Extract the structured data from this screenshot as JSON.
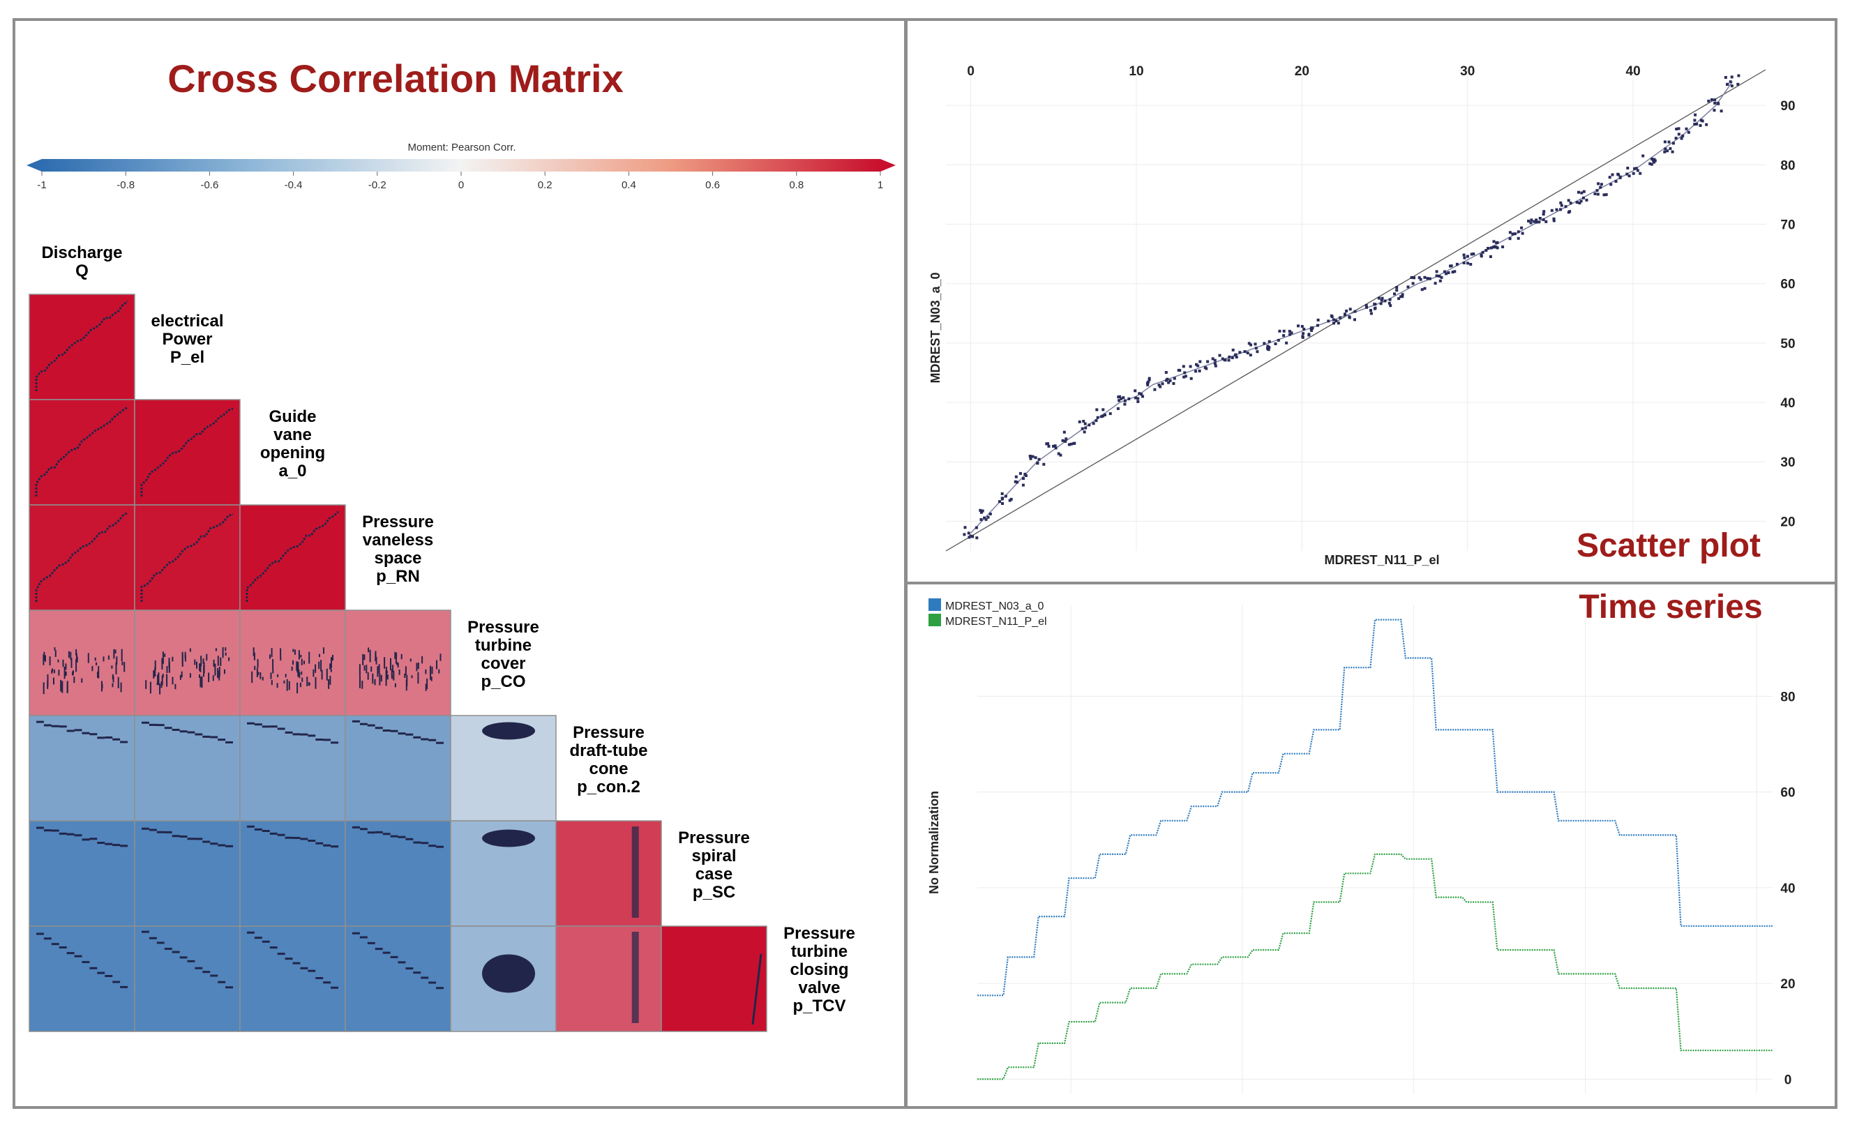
{
  "matrix": {
    "title": "Cross Correlation Matrix",
    "colorbar": {
      "label": "Moment: Pearson Corr.",
      "ticks": [
        "-1",
        "-0.8",
        "-0.6",
        "-0.4",
        "-0.2",
        "0",
        "0.2",
        "0.4",
        "0.6",
        "0.8",
        "1"
      ],
      "colors": {
        "neg": "#2e6db0",
        "mid": "#f3f3f3",
        "pos": "#c8102e"
      }
    },
    "variables": [
      [
        "Discharge",
        "Q"
      ],
      [
        "electrical",
        "Power",
        "P_el"
      ],
      [
        "Guide",
        "vane",
        "opening",
        "a_0"
      ],
      [
        "Pressure",
        "vaneless",
        "space",
        "p_RN"
      ],
      [
        "Pressure",
        "turbine",
        "cover",
        "p_CO"
      ],
      [
        "Pressure",
        "draft-tube",
        "cone",
        "p_con.2"
      ],
      [
        "Pressure",
        "spiral",
        "case",
        "p_SC"
      ],
      [
        "Pressure",
        "turbine",
        "closing",
        "valve",
        "p_TCV"
      ]
    ],
    "correlations": [
      [
        1.0
      ],
      [
        0.99,
        1.0
      ],
      [
        0.98,
        0.98,
        1.0
      ],
      [
        0.55,
        0.55,
        0.55,
        0.55
      ],
      [
        -0.6,
        -0.6,
        -0.6,
        -0.62,
        -0.25
      ],
      [
        -0.82,
        -0.82,
        -0.82,
        -0.82,
        -0.45,
        0.8
      ],
      [
        -0.82,
        -0.82,
        -0.82,
        -0.82,
        -0.45,
        0.7,
        1.0
      ]
    ]
  },
  "chart_data": [
    {
      "type": "scatter",
      "title": "Scatter plot",
      "xlabel": "MDREST_N11_P_el",
      "ylabel": "MDREST_N03_a_0",
      "xlim": [
        -1.5,
        48
      ],
      "ylim": [
        15,
        96
      ],
      "xticks": [
        0,
        10,
        20,
        30,
        40
      ],
      "yticks": [
        20,
        30,
        40,
        50,
        60,
        70,
        80,
        90
      ],
      "x": [
        0,
        1,
        2,
        3,
        4,
        5,
        6,
        7,
        8,
        9,
        10,
        11,
        12,
        13,
        14,
        15,
        16,
        17,
        18,
        19,
        20,
        21,
        22,
        23,
        24,
        25,
        26,
        27,
        28,
        29,
        30,
        31,
        32,
        33,
        34,
        35,
        36,
        37,
        38,
        39,
        40,
        41,
        42,
        43,
        44,
        45,
        46
      ],
      "y": [
        18,
        21,
        24,
        27,
        30,
        32,
        34,
        36,
        38,
        40,
        41,
        43,
        44,
        45,
        46,
        47,
        48,
        49,
        50,
        51,
        52,
        53,
        54,
        55,
        56,
        57,
        58.5,
        60,
        61,
        62.5,
        64,
        65.5,
        67,
        68.5,
        70,
        71.5,
        73,
        74.5,
        76,
        77.5,
        79,
        81,
        83,
        85,
        87.5,
        90,
        94
      ]
    },
    {
      "type": "line",
      "title": "Time series",
      "ylabel": "No Normalization",
      "ylim": [
        -3,
        99
      ],
      "yticks": [
        0,
        20,
        40,
        60,
        80
      ],
      "x": [
        0,
        1,
        2,
        3,
        4,
        5,
        6,
        7,
        8,
        9,
        10,
        11,
        12,
        13,
        14,
        15,
        16,
        17,
        18,
        19,
        20,
        21,
        22,
        23,
        24,
        25,
        26
      ],
      "series": [
        {
          "name": "MDREST_N03_a_0",
          "color": "#2f7bbf",
          "values": [
            17.5,
            25.5,
            34,
            42,
            47,
            51,
            54,
            57,
            60,
            64,
            68,
            73,
            86,
            96,
            88,
            73,
            73,
            60,
            60,
            54,
            54,
            51,
            51,
            32,
            32,
            32,
            32
          ]
        },
        {
          "name": "MDREST_N11_P_el",
          "color": "#2ea043",
          "values": [
            0,
            2.5,
            7.5,
            12,
            16,
            19,
            22,
            24,
            25.5,
            27,
            30.5,
            37,
            43,
            47,
            46,
            38,
            37,
            27,
            27,
            22,
            22,
            19,
            19,
            6,
            6,
            6,
            6
          ]
        }
      ]
    }
  ]
}
